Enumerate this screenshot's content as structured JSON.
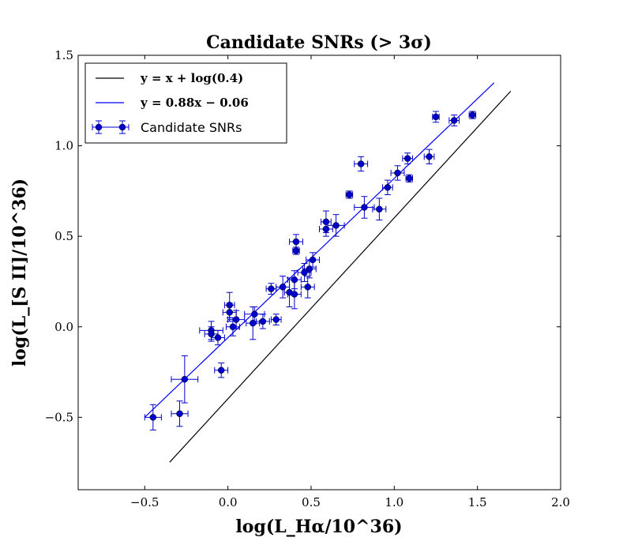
{
  "chart_data": {
    "type": "scatter",
    "title": "Candidate SNRs (> 3σ)",
    "xlabel": "log(L_Hα/10^36)",
    "ylabel": "log(L_[S II]/10^36)",
    "xlim": [
      -0.9,
      2.0
    ],
    "ylim": [
      -0.9,
      1.5
    ],
    "xticks": [
      -0.5,
      0.0,
      0.5,
      1.0,
      1.5,
      2.0
    ],
    "xtick_labels": [
      "−0.5",
      "0.0",
      "0.5",
      "1.0",
      "1.5",
      "2.0"
    ],
    "yticks": [
      -0.5,
      0.0,
      0.5,
      1.0,
      1.5
    ],
    "ytick_labels": [
      "−0.5",
      "0.0",
      "0.5",
      "1.0",
      "1.5"
    ],
    "legend": {
      "location": "upper-left",
      "entries": [
        {
          "label": "y = x + log(0.4)",
          "style": "line",
          "color": "#000000"
        },
        {
          "label": "y = 0.88x − 0.06",
          "style": "line",
          "color": "#0000ff"
        },
        {
          "label": "Candidate SNRs",
          "style": "errorbar",
          "color": "#0000cc"
        }
      ]
    },
    "lines": [
      {
        "name": "y = x + log(0.4)",
        "color": "#000000",
        "x": [
          -0.35,
          1.7
        ],
        "y": [
          -0.748,
          1.302
        ]
      },
      {
        "name": "y = 0.88x − 0.06",
        "color": "#0000ff",
        "x": [
          -0.5,
          1.6
        ],
        "y": [
          -0.5,
          1.348
        ]
      }
    ],
    "series": [
      {
        "name": "Candidate SNRs",
        "color": "#0000cc",
        "points": [
          {
            "x": -0.45,
            "y": -0.5,
            "xerr": 0.05,
            "yerr": 0.07
          },
          {
            "x": -0.29,
            "y": -0.48,
            "xerr": 0.05,
            "yerr": 0.07
          },
          {
            "x": -0.26,
            "y": -0.29,
            "xerr": 0.08,
            "yerr": 0.13
          },
          {
            "x": -0.04,
            "y": -0.24,
            "xerr": 0.04,
            "yerr": 0.04
          },
          {
            "x": -0.1,
            "y": -0.02,
            "xerr": 0.07,
            "yerr": 0.05
          },
          {
            "x": -0.1,
            "y": -0.04,
            "xerr": 0.04,
            "yerr": 0.04
          },
          {
            "x": -0.06,
            "y": -0.06,
            "xerr": 0.04,
            "yerr": 0.04
          },
          {
            "x": 0.01,
            "y": 0.12,
            "xerr": 0.03,
            "yerr": 0.07
          },
          {
            "x": 0.01,
            "y": 0.08,
            "xerr": 0.04,
            "yerr": 0.05
          },
          {
            "x": 0.03,
            "y": 0.0,
            "xerr": 0.04,
            "yerr": 0.05
          },
          {
            "x": 0.05,
            "y": 0.04,
            "xerr": 0.05,
            "yerr": 0.05
          },
          {
            "x": 0.15,
            "y": 0.02,
            "xerr": 0.04,
            "yerr": 0.09
          },
          {
            "x": 0.16,
            "y": 0.07,
            "xerr": 0.06,
            "yerr": 0.04
          },
          {
            "x": 0.21,
            "y": 0.03,
            "xerr": 0.04,
            "yerr": 0.04
          },
          {
            "x": 0.29,
            "y": 0.04,
            "xerr": 0.03,
            "yerr": 0.03
          },
          {
            "x": 0.26,
            "y": 0.21,
            "xerr": 0.03,
            "yerr": 0.03
          },
          {
            "x": 0.33,
            "y": 0.22,
            "xerr": 0.04,
            "yerr": 0.06
          },
          {
            "x": 0.37,
            "y": 0.19,
            "xerr": 0.03,
            "yerr": 0.08
          },
          {
            "x": 0.4,
            "y": 0.18,
            "xerr": 0.04,
            "yerr": 0.08
          },
          {
            "x": 0.4,
            "y": 0.26,
            "xerr": 0.04,
            "yerr": 0.05
          },
          {
            "x": 0.46,
            "y": 0.3,
            "xerr": 0.04,
            "yerr": 0.05
          },
          {
            "x": 0.49,
            "y": 0.32,
            "xerr": 0.04,
            "yerr": 0.05
          },
          {
            "x": 0.48,
            "y": 0.22,
            "xerr": 0.04,
            "yerr": 0.06
          },
          {
            "x": 0.51,
            "y": 0.37,
            "xerr": 0.04,
            "yerr": 0.04
          },
          {
            "x": 0.41,
            "y": 0.42,
            "xerr": 0.02,
            "yerr": 0.02
          },
          {
            "x": 0.41,
            "y": 0.47,
            "xerr": 0.04,
            "yerr": 0.04
          },
          {
            "x": 0.59,
            "y": 0.58,
            "xerr": 0.03,
            "yerr": 0.06
          },
          {
            "x": 0.59,
            "y": 0.54,
            "xerr": 0.04,
            "yerr": 0.04
          },
          {
            "x": 0.65,
            "y": 0.56,
            "xerr": 0.05,
            "yerr": 0.06
          },
          {
            "x": 0.73,
            "y": 0.73,
            "xerr": 0.02,
            "yerr": 0.02
          },
          {
            "x": 0.8,
            "y": 0.9,
            "xerr": 0.04,
            "yerr": 0.04
          },
          {
            "x": 0.82,
            "y": 0.66,
            "xerr": 0.06,
            "yerr": 0.06
          },
          {
            "x": 0.91,
            "y": 0.65,
            "xerr": 0.04,
            "yerr": 0.06
          },
          {
            "x": 0.96,
            "y": 0.77,
            "xerr": 0.03,
            "yerr": 0.04
          },
          {
            "x": 1.02,
            "y": 0.85,
            "xerr": 0.04,
            "yerr": 0.04
          },
          {
            "x": 1.08,
            "y": 0.93,
            "xerr": 0.03,
            "yerr": 0.03
          },
          {
            "x": 1.09,
            "y": 0.82,
            "xerr": 0.02,
            "yerr": 0.02
          },
          {
            "x": 1.21,
            "y": 0.94,
            "xerr": 0.03,
            "yerr": 0.04
          },
          {
            "x": 1.25,
            "y": 1.16,
            "xerr": 0.02,
            "yerr": 0.03
          },
          {
            "x": 1.36,
            "y": 1.14,
            "xerr": 0.03,
            "yerr": 0.03
          },
          {
            "x": 1.47,
            "y": 1.17,
            "xerr": 0.02,
            "yerr": 0.02
          }
        ]
      }
    ]
  }
}
